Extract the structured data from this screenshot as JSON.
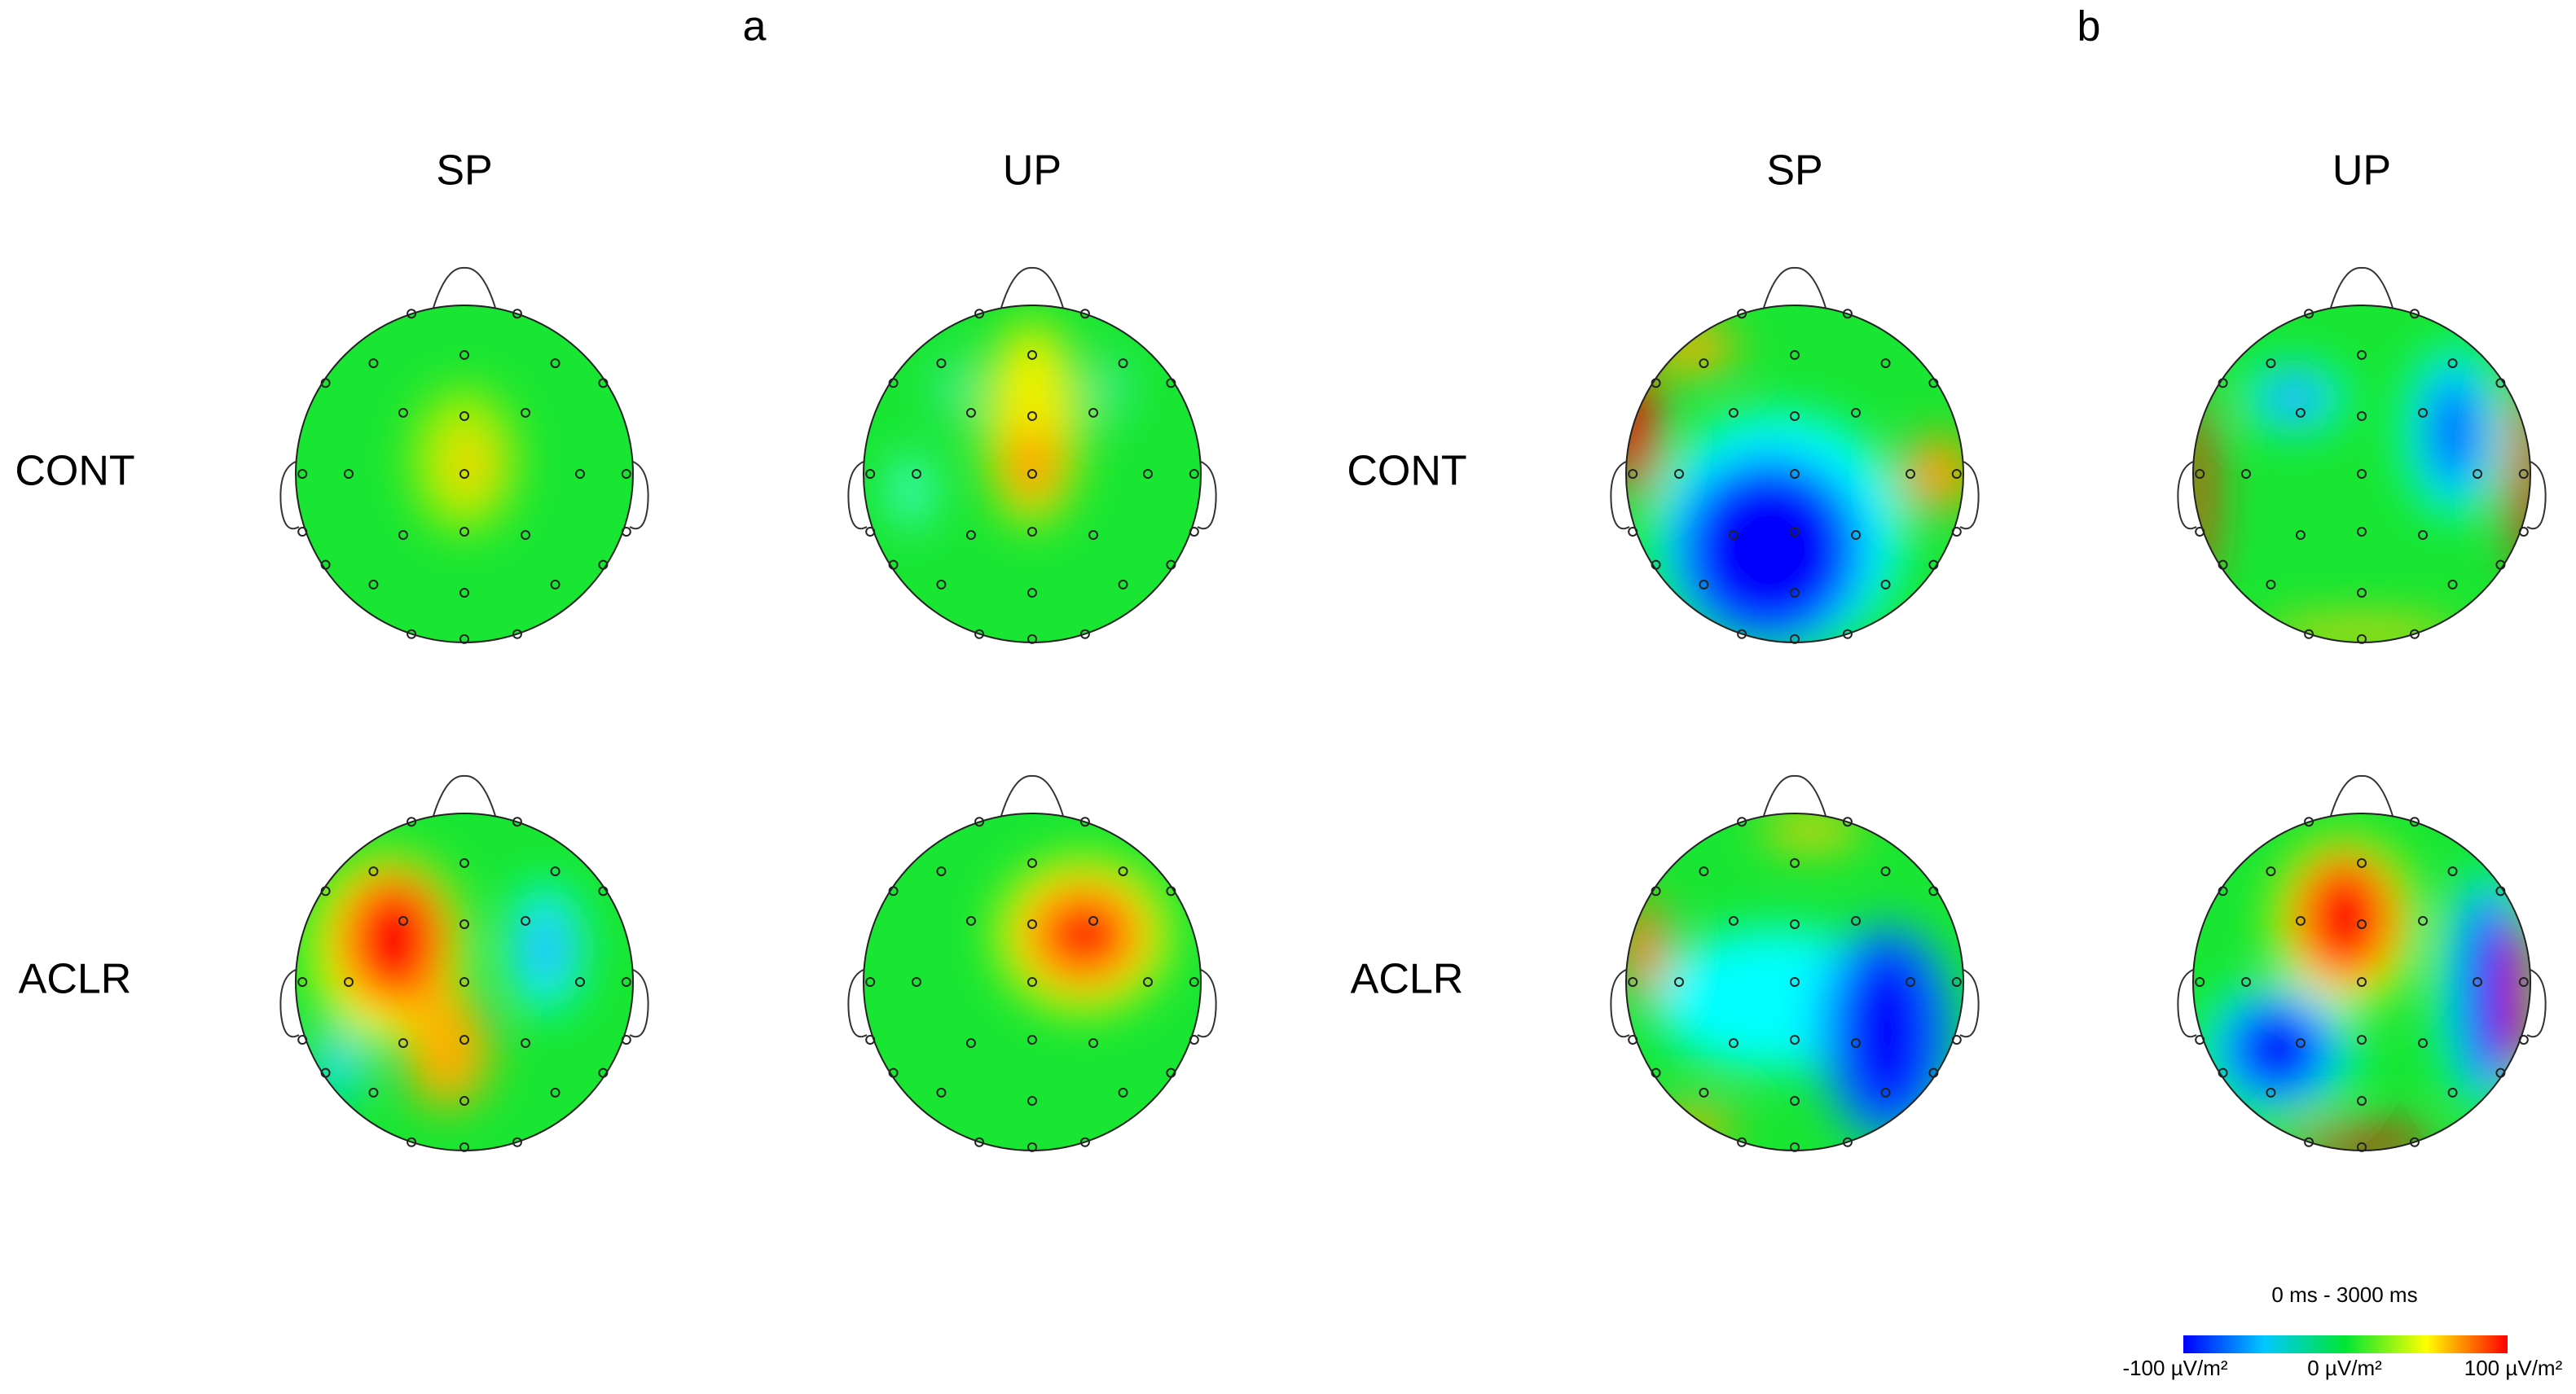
{
  "panels": [
    {
      "label": "a",
      "columns": [
        "SP",
        "UP"
      ],
      "rows": [
        "CONT",
        "ACLR"
      ]
    },
    {
      "label": "b",
      "columns": [
        "SP",
        "UP"
      ],
      "rows": [
        "CONT",
        "ACLR"
      ]
    }
  ],
  "colorbar": {
    "title": "0 ms - 3000 ms",
    "labels": [
      "-100 µV/m²",
      "0 µV/m²",
      "100 µV/m²"
    ]
  }
}
